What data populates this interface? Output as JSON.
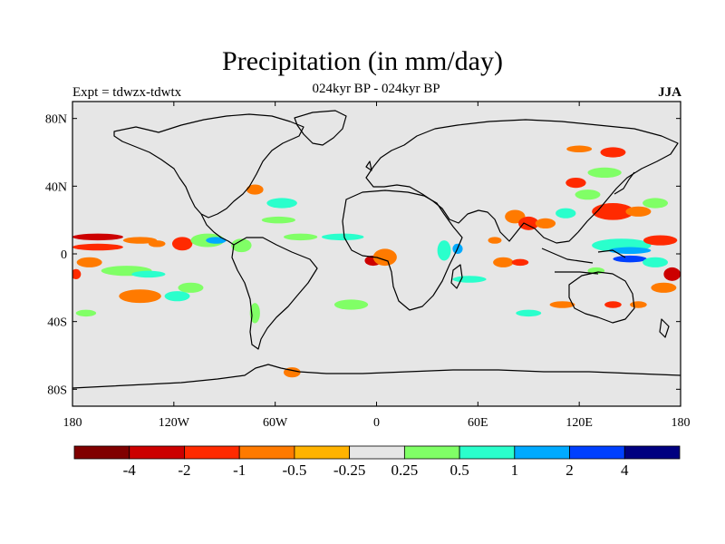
{
  "chart_data": {
    "type": "heatmap",
    "title": "Precipitation (in mm/day)",
    "subtitle": "024kyr BP - 024kyr BP",
    "left_label": "Expt = tdwzx-tdwtx",
    "right_label": "JJA",
    "projection": "cylindrical equidistant world map with coastlines",
    "x_ticks": [
      "180",
      "120W",
      "60W",
      "0",
      "60E",
      "120E",
      "180"
    ],
    "y_ticks": [
      "80N",
      "40N",
      "0",
      "40S",
      "80S"
    ],
    "xlim": [
      -180,
      180
    ],
    "ylim": [
      -90,
      90
    ],
    "background_color": "#e6e6e6",
    "colorbar": {
      "colors": [
        "#800000",
        "#cc0000",
        "#ff2a00",
        "#ff7a00",
        "#ffb300",
        "#e6e6e6",
        "#80ff66",
        "#2affcc",
        "#00aaff",
        "#0040ff",
        "#000080"
      ],
      "labels": [
        "-4",
        "-2",
        "-1",
        "-0.5",
        "-0.25",
        "0.25",
        "0.5",
        "1",
        "2",
        "4"
      ]
    },
    "anomaly_regions": [
      {
        "lon": -165,
        "lat": 10,
        "w": 30,
        "h": 4,
        "level": "-2"
      },
      {
        "lon": -165,
        "lat": 4,
        "w": 30,
        "h": 4,
        "level": "-1"
      },
      {
        "lon": -140,
        "lat": 8,
        "w": 20,
        "h": 4,
        "level": "-0.5"
      },
      {
        "lon": -115,
        "lat": 6,
        "w": 12,
        "h": 8,
        "level": "-1"
      },
      {
        "lon": -100,
        "lat": 8,
        "w": 20,
        "h": 8,
        "level": "0.25"
      },
      {
        "lon": -95,
        "lat": 8,
        "w": 12,
        "h": 4,
        "level": "1"
      },
      {
        "lon": -80,
        "lat": 5,
        "w": 12,
        "h": 8,
        "level": "0.25"
      },
      {
        "lon": -130,
        "lat": 6,
        "w": 10,
        "h": 4,
        "level": "-0.5"
      },
      {
        "lon": -148,
        "lat": -10,
        "w": 30,
        "h": 6,
        "level": "0.25"
      },
      {
        "lon": -135,
        "lat": -12,
        "w": 20,
        "h": 4,
        "level": "0.5"
      },
      {
        "lon": -140,
        "lat": -25,
        "w": 25,
        "h": 8,
        "level": "-0.5"
      },
      {
        "lon": -118,
        "lat": -25,
        "w": 15,
        "h": 6,
        "level": "0.5"
      },
      {
        "lon": -110,
        "lat": -20,
        "w": 15,
        "h": 6,
        "level": "0.25"
      },
      {
        "lon": -170,
        "lat": -5,
        "w": 15,
        "h": 6,
        "level": "-0.5"
      },
      {
        "lon": -178,
        "lat": -12,
        "w": 6,
        "h": 6,
        "level": "-1"
      },
      {
        "lon": -172,
        "lat": -35,
        "w": 12,
        "h": 4,
        "level": "0.25"
      },
      {
        "lon": -72,
        "lat": 38,
        "w": 10,
        "h": 6,
        "level": "-0.5"
      },
      {
        "lon": -56,
        "lat": 30,
        "w": 18,
        "h": 6,
        "level": "0.5"
      },
      {
        "lon": -58,
        "lat": 20,
        "w": 20,
        "h": 4,
        "level": "0.25"
      },
      {
        "lon": -45,
        "lat": 10,
        "w": 20,
        "h": 4,
        "level": "0.25"
      },
      {
        "lon": -20,
        "lat": 10,
        "w": 25,
        "h": 4,
        "level": "0.5"
      },
      {
        "lon": -2,
        "lat": -4,
        "w": 10,
        "h": 6,
        "level": "-2"
      },
      {
        "lon": 5,
        "lat": -2,
        "w": 14,
        "h": 10,
        "level": "-0.5"
      },
      {
        "lon": 40,
        "lat": 2,
        "w": 8,
        "h": 12,
        "level": "0.5"
      },
      {
        "lon": 48,
        "lat": 3,
        "w": 6,
        "h": 6,
        "level": "1"
      },
      {
        "lon": 55,
        "lat": -15,
        "w": 20,
        "h": 4,
        "level": "0.5"
      },
      {
        "lon": 75,
        "lat": -5,
        "w": 12,
        "h": 6,
        "level": "-0.5"
      },
      {
        "lon": 85,
        "lat": -5,
        "w": 10,
        "h": 4,
        "level": "-1"
      },
      {
        "lon": 70,
        "lat": 8,
        "w": 8,
        "h": 4,
        "level": "-0.5"
      },
      {
        "lon": 82,
        "lat": 22,
        "w": 12,
        "h": 8,
        "level": "-0.5"
      },
      {
        "lon": 90,
        "lat": 18,
        "w": 12,
        "h": 8,
        "level": "-1"
      },
      {
        "lon": 100,
        "lat": 18,
        "w": 12,
        "h": 6,
        "level": "-0.5"
      },
      {
        "lon": 112,
        "lat": 24,
        "w": 12,
        "h": 6,
        "level": "0.5"
      },
      {
        "lon": 125,
        "lat": 35,
        "w": 15,
        "h": 6,
        "level": "0.25"
      },
      {
        "lon": 118,
        "lat": 42,
        "w": 12,
        "h": 6,
        "level": "-1"
      },
      {
        "lon": 135,
        "lat": 48,
        "w": 20,
        "h": 6,
        "level": "0.25"
      },
      {
        "lon": 140,
        "lat": 25,
        "w": 25,
        "h": 10,
        "level": "-1"
      },
      {
        "lon": 155,
        "lat": 25,
        "w": 15,
        "h": 6,
        "level": "-0.5"
      },
      {
        "lon": 165,
        "lat": 30,
        "w": 15,
        "h": 6,
        "level": "0.25"
      },
      {
        "lon": 120,
        "lat": 62,
        "w": 15,
        "h": 4,
        "level": "-0.5"
      },
      {
        "lon": 140,
        "lat": 60,
        "w": 15,
        "h": 6,
        "level": "-1"
      },
      {
        "lon": 145,
        "lat": 5,
        "w": 35,
        "h": 8,
        "level": "0.5"
      },
      {
        "lon": 150,
        "lat": 2,
        "w": 25,
        "h": 4,
        "level": "1"
      },
      {
        "lon": 150,
        "lat": -3,
        "w": 20,
        "h": 4,
        "level": "2"
      },
      {
        "lon": 165,
        "lat": -5,
        "w": 15,
        "h": 6,
        "level": "0.5"
      },
      {
        "lon": 168,
        "lat": 8,
        "w": 20,
        "h": 6,
        "level": "-1"
      },
      {
        "lon": 175,
        "lat": -12,
        "w": 10,
        "h": 8,
        "level": "-2"
      },
      {
        "lon": 170,
        "lat": -20,
        "w": 15,
        "h": 6,
        "level": "-0.5"
      },
      {
        "lon": 130,
        "lat": -10,
        "w": 10,
        "h": 4,
        "level": "0.25"
      },
      {
        "lon": 140,
        "lat": -30,
        "w": 10,
        "h": 4,
        "level": "-1"
      },
      {
        "lon": 155,
        "lat": -30,
        "w": 10,
        "h": 4,
        "level": "-0.5"
      },
      {
        "lon": 110,
        "lat": -30,
        "w": 15,
        "h": 4,
        "level": "-0.5"
      },
      {
        "lon": 90,
        "lat": -35,
        "w": 15,
        "h": 4,
        "level": "0.5"
      },
      {
        "lon": -15,
        "lat": -30,
        "w": 20,
        "h": 6,
        "level": "0.25"
      },
      {
        "lon": -72,
        "lat": -35,
        "w": 6,
        "h": 12,
        "level": "0.25"
      },
      {
        "lon": -50,
        "lat": -70,
        "w": 10,
        "h": 6,
        "level": "-0.5"
      }
    ]
  }
}
